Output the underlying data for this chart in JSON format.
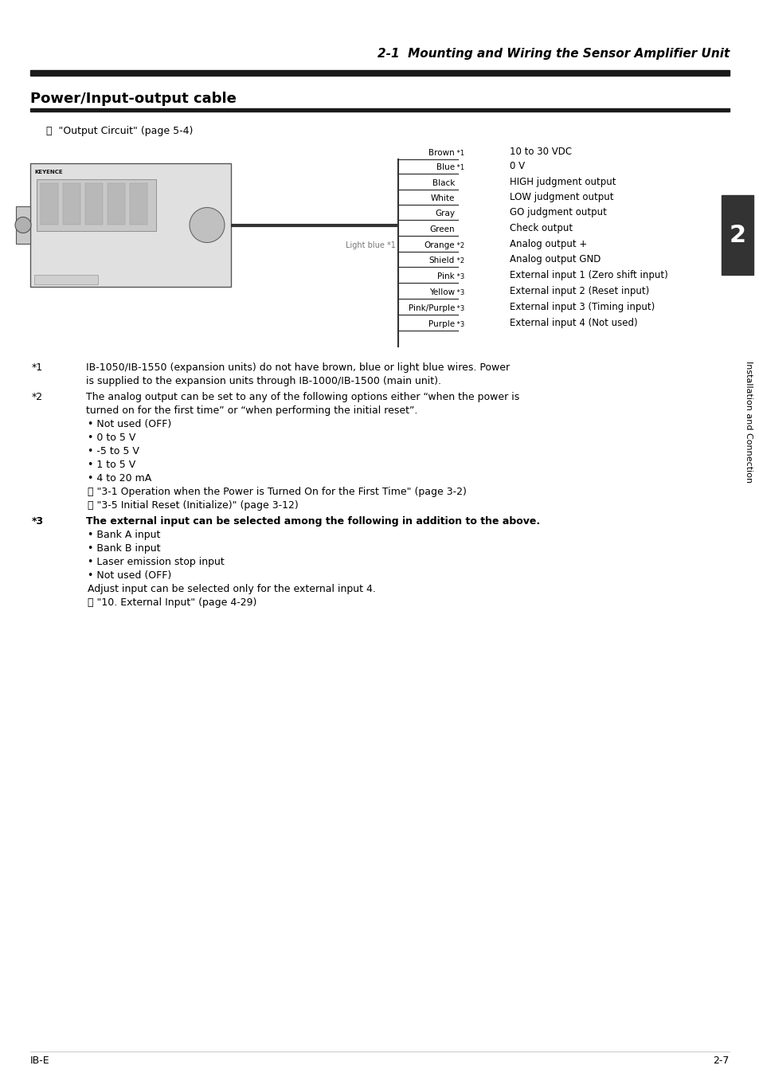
{
  "page_title": "2-1  Mounting and Wiring the Sensor Amplifier Unit",
  "section_title": "Power/Input-output cable",
  "ref_text": "⧉  \"Output Circuit\" (page 5-4)",
  "wire_labels": [
    {
      "label": "Brown",
      "sup": "*1",
      "desc": "10 to 30 VDC"
    },
    {
      "label": "Blue",
      "sup": "*1",
      "desc": "0 V"
    },
    {
      "label": "Black",
      "sup": "",
      "desc": "HIGH judgment output"
    },
    {
      "label": "White",
      "sup": "",
      "desc": "LOW judgment output"
    },
    {
      "label": "Gray",
      "sup": "",
      "desc": "GO judgment output"
    },
    {
      "label": "Green",
      "sup": "",
      "desc": "Check output"
    },
    {
      "label": "Orange",
      "sup": "*2",
      "desc": "Analog output +"
    },
    {
      "label": "Shield",
      "sup": "*2",
      "desc": "Analog output GND"
    },
    {
      "label": "Pink",
      "sup": "*3",
      "desc": "External input 1 (Zero shift input)"
    },
    {
      "label": "Yellow",
      "sup": "*3",
      "desc": "External input 2 (Reset input)"
    },
    {
      "label": "Pink/Purple",
      "sup": "*3",
      "desc": "External input 3 (Timing input)"
    },
    {
      "label": "Purple",
      "sup": "*3",
      "desc": "External input 4 (Not used)"
    }
  ],
  "light_blue_sup": "*1",
  "footnote1_mark": "*1",
  "footnote1_line1": "IB-1050/IB-1550 (expansion units) do not have brown, blue or light blue wires. Power",
  "footnote1_line2": "is supplied to the expansion units through IB-1000/IB-1500 (main unit).",
  "footnote2_mark": "*2",
  "footnote2_line1": "The analog output can be set to any of the following options either “when the power is",
  "footnote2_line2": "turned on for the first time” or “when performing the initial reset”.",
  "footnote2_bullets": [
    "• Not used (OFF)",
    "• 0 to 5 V",
    "• -5 to 5 V",
    "• 1 to 5 V",
    "• 4 to 20 mA"
  ],
  "footnote2_refs": [
    "⧉ \"3-1 Operation when the Power is Turned On for the First Time\" (page 3-2)",
    "⧉ \"3-5 Initial Reset (Initialize)\" (page 3-12)"
  ],
  "footnote3_mark": "*3",
  "footnote3_line1": "The external input can be selected among the following in addition to the above.",
  "footnote3_bullets": [
    "• Bank A input",
    "• Bank B input",
    "• Laser emission stop input",
    "• Not used (OFF)"
  ],
  "footnote3_extra": "Adjust input can be selected only for the external input 4.",
  "footnote3_ref": "⧉ \"10. External Input\" (page 4-29)",
  "side_tab_text": "Installation and Connection",
  "side_tab_number": "2",
  "footer_left": "IB-E",
  "footer_right": "2-7",
  "bg_color": "#ffffff",
  "header_bar_color": "#1a1a1a",
  "section_bar_color": "#1a1a1a",
  "side_tab_bg": "#333333",
  "side_tab_fg": "#ffffff"
}
